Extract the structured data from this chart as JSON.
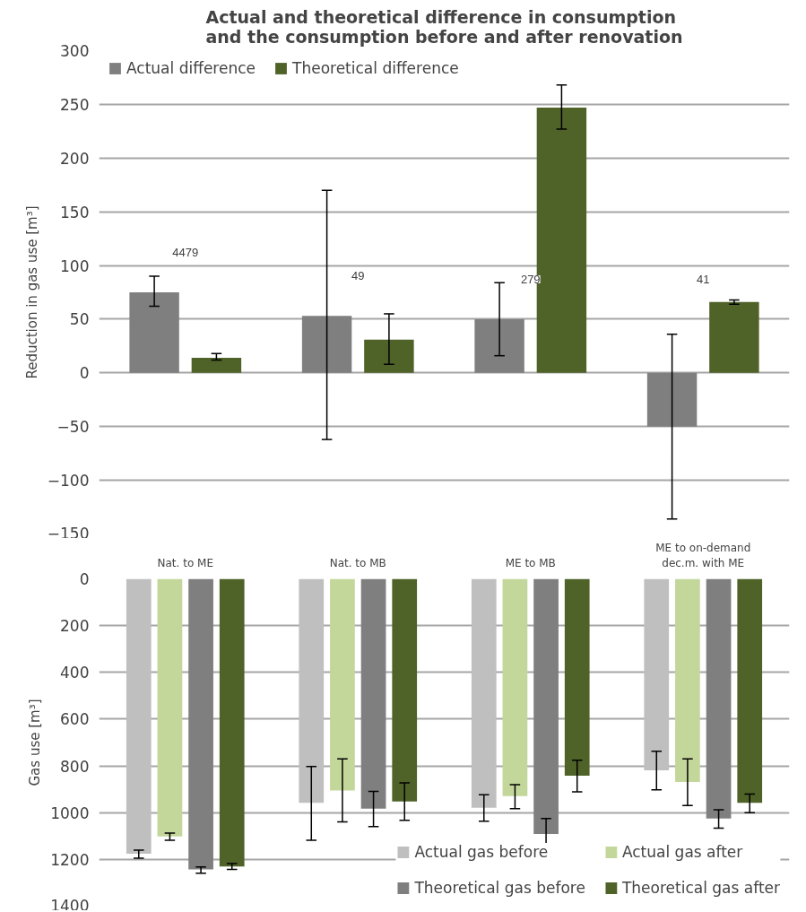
{
  "chart_data": [
    {
      "type": "bar",
      "title": "Actual and theoretical difference in consumption and the consumption before and after renovation",
      "ylabel": "Reduction in gas use [m³]",
      "categories": [
        null,
        null,
        null,
        null
      ],
      "series": [
        {
          "name": "Actual difference",
          "color": "#7f7f7f",
          "values": [
            75,
            53,
            50,
            -50
          ],
          "errors": [
            [
              62,
              90
            ],
            [
              -62,
              170
            ],
            [
              16,
              84
            ],
            [
              -136,
              36
            ]
          ]
        },
        {
          "name": "Theoretical difference",
          "color": "#4f6228",
          "values": [
            14,
            31,
            247,
            66
          ],
          "errors": [
            [
              12,
              18
            ],
            [
              8,
              55
            ],
            [
              227,
              268
            ],
            [
              64,
              68
            ]
          ]
        }
      ],
      "ylim": [
        -150,
        300
      ],
      "yticks": [
        -150,
        -100,
        -50,
        0,
        50,
        100,
        150,
        200,
        250,
        300
      ],
      "grid": "y",
      "legend": "top left",
      "tick_labels": "y",
      "annotations": [
        "4479",
        "49",
        "279",
        "41"
      ]
    },
    {
      "type": "bar",
      "ylabel": "Gas use [m³]",
      "categories": [
        "Nat. to ME",
        "Nat. to MB",
        "ME to MB",
        "ME to on-demand dec.m. with ME"
      ],
      "series": [
        {
          "name": "Actual gas before",
          "color": "#bfbfbf",
          "values": [
            1176,
            958,
            979,
            819
          ],
          "errors": [
            [
              1160,
              1195
            ],
            [
              803,
              1118
            ],
            [
              923,
              1037
            ],
            [
              737,
              902
            ]
          ]
        },
        {
          "name": "Actual gas after",
          "color": "#c4d79b",
          "values": [
            1102,
            905,
            929,
            869
          ],
          "errors": [
            [
              1087,
              1118
            ],
            [
              770,
              1039
            ],
            [
              880,
              983
            ],
            [
              770,
              969
            ]
          ]
        },
        {
          "name": "Theoretical gas before",
          "color": "#7f7f7f",
          "values": [
            1243,
            983,
            1091,
            1025
          ],
          "errors": [
            [
              1232,
              1259
            ],
            [
              909,
              1060
            ],
            [
              1025,
              1162
            ],
            [
              988,
              1066
            ]
          ]
        },
        {
          "name": "Theoretical gas after",
          "color": "#4f6228",
          "values": [
            1230,
            952,
            842,
            958
          ],
          "errors": [
            [
              1218,
              1243
            ],
            [
              873,
              1033
            ],
            [
              776,
              911
            ],
            [
              921,
              1000
            ]
          ]
        }
      ],
      "ylim": [
        1400,
        0
      ],
      "yticks": [
        0,
        200,
        400,
        600,
        800,
        1000,
        1200,
        1400
      ],
      "grid": "y",
      "legend": "bottom right"
    }
  ]
}
